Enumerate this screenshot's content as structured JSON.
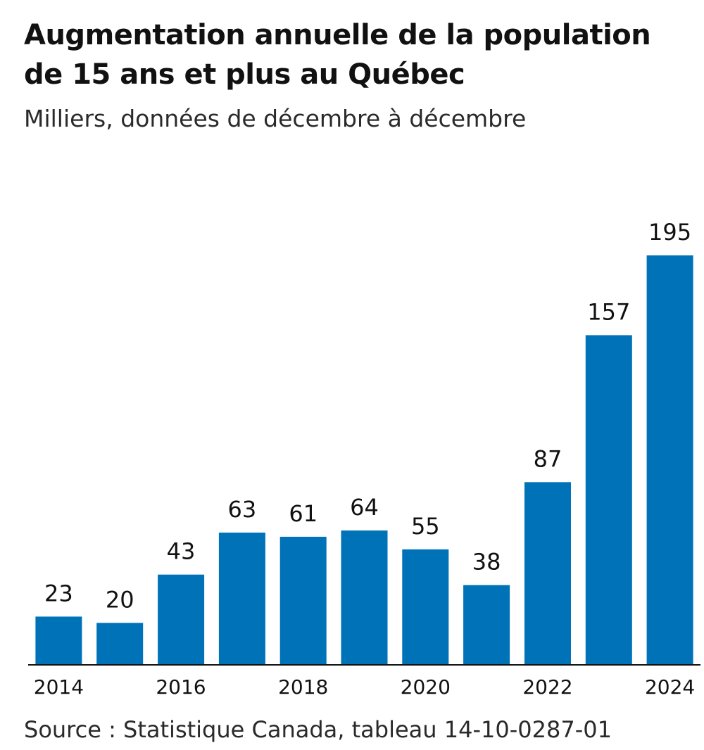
{
  "header": {
    "title": "Augmentation annuelle de la population de 15 ans et plus au Québec",
    "subtitle": "Milliers, données de décembre à décembre"
  },
  "footer": {
    "source": "Source : Statistique Canada, tableau 14-10-0287-01"
  },
  "colors": {
    "bar": "#0072b8",
    "baseline": "#111111"
  },
  "chart_data": {
    "type": "bar",
    "title": "Augmentation annuelle de la population de 15 ans et plus au Québec",
    "subtitle": "Milliers, données de décembre à décembre",
    "categories": [
      "2014",
      "2015",
      "2016",
      "2017",
      "2018",
      "2019",
      "2020",
      "2021",
      "2022",
      "2023",
      "2024"
    ],
    "values": [
      23,
      20,
      43,
      63,
      61,
      64,
      55,
      38,
      87,
      157,
      195
    ],
    "x_tick_labels": [
      "2014",
      "2016",
      "2018",
      "2020",
      "2022",
      "2024"
    ],
    "xlabel": "",
    "ylabel": "",
    "ylim": [
      0,
      195
    ],
    "data_labels": true,
    "grid": false,
    "legend": "none"
  }
}
